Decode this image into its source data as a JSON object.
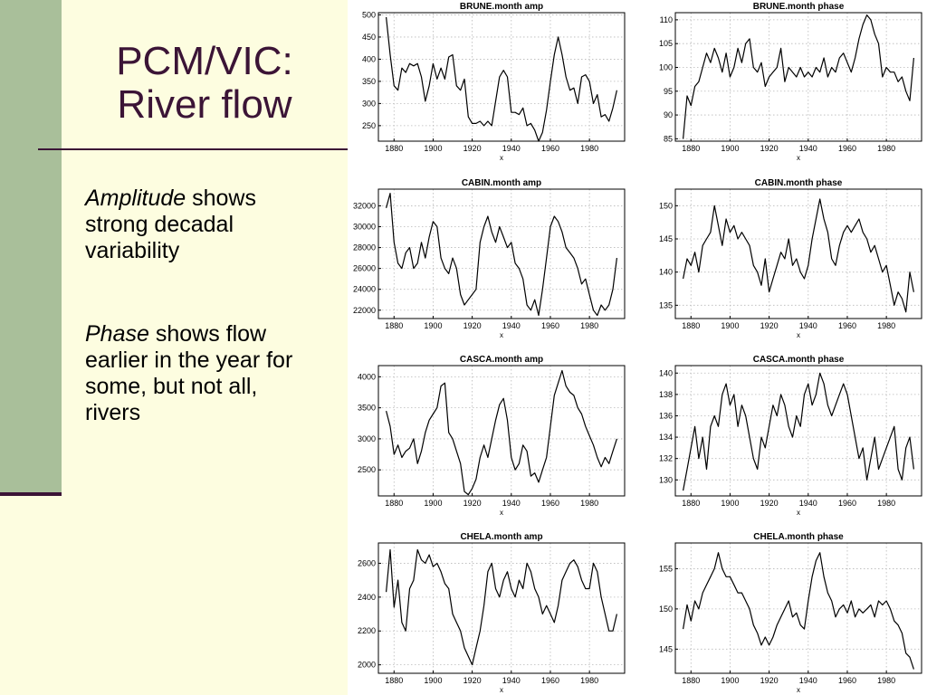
{
  "slide": {
    "title_lines": [
      "PCM/VIC:",
      "River flow"
    ],
    "bullets": [
      {
        "emph": "Amplitude",
        "rest": " shows strong decadal variability"
      },
      {
        "emph": "Phase",
        "rest": " shows flow earlier in the year for some, but not all, rivers"
      }
    ],
    "colors": {
      "background": "#fdfde0",
      "left_strip": "#a9bf9a",
      "accent": "#3b1436"
    }
  },
  "chart_data": [
    {
      "type": "line",
      "title": "BRUNE.month amp",
      "xlabel": "x",
      "xlim": [
        1872,
        1998
      ],
      "ylim": [
        215,
        505
      ],
      "xticks": [
        1880,
        1900,
        1920,
        1940,
        1960,
        1980
      ],
      "yticks": [
        250,
        300,
        350,
        400,
        450,
        500
      ],
      "x": [
        1876,
        1878,
        1880,
        1882,
        1884,
        1886,
        1888,
        1890,
        1892,
        1894,
        1896,
        1898,
        1900,
        1902,
        1904,
        1906,
        1908,
        1910,
        1912,
        1914,
        1916,
        1918,
        1920,
        1922,
        1924,
        1926,
        1928,
        1930,
        1932,
        1934,
        1936,
        1938,
        1940,
        1942,
        1944,
        1946,
        1948,
        1950,
        1952,
        1954,
        1956,
        1958,
        1960,
        1962,
        1964,
        1966,
        1968,
        1970,
        1972,
        1974,
        1976,
        1978,
        1980,
        1982,
        1984,
        1986,
        1988,
        1990,
        1992,
        1994
      ],
      "values": [
        495,
        410,
        340,
        330,
        380,
        370,
        390,
        385,
        390,
        360,
        305,
        340,
        390,
        355,
        380,
        355,
        405,
        410,
        340,
        330,
        355,
        270,
        255,
        255,
        260,
        250,
        260,
        250,
        305,
        360,
        375,
        360,
        280,
        280,
        275,
        290,
        250,
        255,
        240,
        215,
        235,
        285,
        350,
        410,
        450,
        410,
        360,
        330,
        335,
        300,
        360,
        365,
        350,
        300,
        320,
        270,
        275,
        260,
        290,
        330
      ]
    },
    {
      "type": "line",
      "title": "BRUNE.month phase",
      "xlabel": "x",
      "xlim": [
        1872,
        1998
      ],
      "ylim": [
        84.5,
        111.5
      ],
      "xticks": [
        1880,
        1900,
        1920,
        1940,
        1960,
        1980
      ],
      "yticks": [
        85,
        90,
        95,
        100,
        105,
        110
      ],
      "x": [
        1876,
        1878,
        1880,
        1882,
        1884,
        1886,
        1888,
        1890,
        1892,
        1894,
        1896,
        1898,
        1900,
        1902,
        1904,
        1906,
        1908,
        1910,
        1912,
        1914,
        1916,
        1918,
        1920,
        1922,
        1924,
        1926,
        1928,
        1930,
        1932,
        1934,
        1936,
        1938,
        1940,
        1942,
        1944,
        1946,
        1948,
        1950,
        1952,
        1954,
        1956,
        1958,
        1960,
        1962,
        1964,
        1966,
        1968,
        1970,
        1972,
        1974,
        1976,
        1978,
        1980,
        1982,
        1984,
        1986,
        1988,
        1990,
        1992,
        1994
      ],
      "values": [
        85,
        94,
        92,
        96,
        97,
        100,
        103,
        101,
        104,
        102,
        99,
        103,
        98,
        100,
        104,
        101,
        105,
        106,
        100,
        99,
        101,
        96,
        98,
        99,
        100,
        104,
        97,
        100,
        99,
        98,
        100,
        98,
        99,
        98,
        100,
        99,
        102,
        98,
        100,
        99,
        102,
        103,
        101,
        99,
        102,
        106,
        109,
        111,
        110,
        107,
        105,
        98,
        100,
        99,
        99,
        97,
        98,
        95,
        93,
        102
      ]
    },
    {
      "type": "line",
      "title": "CABIN.month amp",
      "xlabel": "x",
      "xlim": [
        1872,
        1998
      ],
      "ylim": [
        21200,
        33600
      ],
      "xticks": [
        1880,
        1900,
        1920,
        1940,
        1960,
        1980
      ],
      "yticks": [
        22000,
        24000,
        26000,
        28000,
        30000,
        32000
      ],
      "x": [
        1876,
        1878,
        1880,
        1882,
        1884,
        1886,
        1888,
        1890,
        1892,
        1894,
        1896,
        1898,
        1900,
        1902,
        1904,
        1906,
        1908,
        1910,
        1912,
        1914,
        1916,
        1918,
        1920,
        1922,
        1924,
        1926,
        1928,
        1930,
        1932,
        1934,
        1936,
        1938,
        1940,
        1942,
        1944,
        1946,
        1948,
        1950,
        1952,
        1954,
        1956,
        1958,
        1960,
        1962,
        1964,
        1966,
        1968,
        1970,
        1972,
        1974,
        1976,
        1978,
        1980,
        1982,
        1984,
        1986,
        1988,
        1990,
        1992,
        1994
      ],
      "values": [
        31800,
        33200,
        28500,
        26500,
        26000,
        27500,
        28000,
        26000,
        26500,
        28500,
        27000,
        29000,
        30500,
        30000,
        27000,
        26000,
        25500,
        27000,
        26000,
        23500,
        22500,
        23000,
        23500,
        24000,
        28500,
        30000,
        31000,
        29500,
        28500,
        30000,
        29000,
        28000,
        28500,
        26500,
        26000,
        25000,
        22500,
        22000,
        23000,
        21500,
        24000,
        27000,
        30000,
        31000,
        30500,
        29500,
        28000,
        27500,
        27000,
        26000,
        24500,
        25000,
        23500,
        22000,
        21500,
        22500,
        22000,
        22500,
        24000,
        27000
      ]
    },
    {
      "type": "line",
      "title": "CABIN.month phase",
      "xlabel": "x",
      "xlim": [
        1872,
        1998
      ],
      "ylim": [
        133,
        152.5
      ],
      "xticks": [
        1880,
        1900,
        1920,
        1940,
        1960,
        1980
      ],
      "yticks": [
        135,
        140,
        145,
        150
      ],
      "x": [
        1876,
        1878,
        1880,
        1882,
        1884,
        1886,
        1888,
        1890,
        1892,
        1894,
        1896,
        1898,
        1900,
        1902,
        1904,
        1906,
        1908,
        1910,
        1912,
        1914,
        1916,
        1918,
        1920,
        1922,
        1924,
        1926,
        1928,
        1930,
        1932,
        1934,
        1936,
        1938,
        1940,
        1942,
        1944,
        1946,
        1948,
        1950,
        1952,
        1954,
        1956,
        1958,
        1960,
        1962,
        1964,
        1966,
        1968,
        1970,
        1972,
        1974,
        1976,
        1978,
        1980,
        1982,
        1984,
        1986,
        1988,
        1990,
        1992,
        1994
      ],
      "values": [
        139,
        142,
        141,
        143,
        140,
        144,
        145,
        146,
        150,
        147,
        144,
        148,
        146,
        147,
        145,
        146,
        145,
        144,
        141,
        140,
        138,
        142,
        137,
        139,
        141,
        143,
        142,
        145,
        141,
        142,
        140,
        139,
        141,
        145,
        148,
        151,
        148,
        146,
        142,
        141,
        144,
        146,
        147,
        146,
        147,
        148,
        146,
        145,
        143,
        144,
        142,
        140,
        141,
        138,
        135,
        137,
        136,
        134,
        140,
        137
      ]
    },
    {
      "type": "line",
      "title": "CASCA.month amp",
      "xlabel": "x",
      "xlim": [
        1872,
        1998
      ],
      "ylim": [
        2080,
        4180
      ],
      "xticks": [
        1880,
        1900,
        1920,
        1940,
        1960,
        1980
      ],
      "yticks": [
        2500,
        3000,
        3500,
        4000
      ],
      "x": [
        1876,
        1878,
        1880,
        1882,
        1884,
        1886,
        1888,
        1890,
        1892,
        1894,
        1896,
        1898,
        1900,
        1902,
        1904,
        1906,
        1908,
        1910,
        1912,
        1914,
        1916,
        1918,
        1920,
        1922,
        1924,
        1926,
        1928,
        1930,
        1932,
        1934,
        1936,
        1938,
        1940,
        1942,
        1944,
        1946,
        1948,
        1950,
        1952,
        1954,
        1956,
        1958,
        1960,
        1962,
        1964,
        1966,
        1968,
        1970,
        1972,
        1974,
        1976,
        1978,
        1980,
        1982,
        1984,
        1986,
        1988,
        1990,
        1992,
        1994
      ],
      "values": [
        3450,
        3200,
        2750,
        2900,
        2700,
        2800,
        2850,
        3000,
        2600,
        2800,
        3100,
        3300,
        3400,
        3500,
        3850,
        3900,
        3100,
        3000,
        2800,
        2600,
        2150,
        2100,
        2200,
        2350,
        2700,
        2900,
        2700,
        3000,
        3300,
        3550,
        3650,
        3300,
        2700,
        2500,
        2600,
        2900,
        2800,
        2400,
        2450,
        2300,
        2500,
        2700,
        3200,
        3700,
        3900,
        4100,
        3850,
        3750,
        3700,
        3500,
        3400,
        3200,
        3050,
        2900,
        2700,
        2550,
        2700,
        2600,
        2800,
        3000
      ]
    },
    {
      "type": "line",
      "title": "CASCA.month phase",
      "xlabel": "x",
      "xlim": [
        1872,
        1998
      ],
      "ylim": [
        128.5,
        140.7
      ],
      "xticks": [
        1880,
        1900,
        1920,
        1940,
        1960,
        1980
      ],
      "yticks": [
        130,
        132,
        134,
        136,
        138,
        140
      ],
      "x": [
        1876,
        1878,
        1880,
        1882,
        1884,
        1886,
        1888,
        1890,
        1892,
        1894,
        1896,
        1898,
        1900,
        1902,
        1904,
        1906,
        1908,
        1910,
        1912,
        1914,
        1916,
        1918,
        1920,
        1922,
        1924,
        1926,
        1928,
        1930,
        1932,
        1934,
        1936,
        1938,
        1940,
        1942,
        1944,
        1946,
        1948,
        1950,
        1952,
        1954,
        1956,
        1958,
        1960,
        1962,
        1964,
        1966,
        1968,
        1970,
        1972,
        1974,
        1976,
        1978,
        1980,
        1982,
        1984,
        1986,
        1988,
        1990,
        1992,
        1994
      ],
      "values": [
        129,
        131,
        133,
        135,
        132,
        134,
        131,
        135,
        136,
        135,
        138,
        139,
        137,
        138,
        135,
        137,
        136,
        134,
        132,
        131,
        134,
        133,
        135,
        137,
        136,
        138,
        137,
        135,
        134,
        136,
        135,
        138,
        139,
        137,
        138,
        140,
        139,
        137,
        136,
        137,
        138,
        139,
        138,
        136,
        134,
        132,
        133,
        130,
        132,
        134,
        131,
        132,
        133,
        134,
        135,
        131,
        130,
        133,
        134,
        131
      ]
    },
    {
      "type": "line",
      "title": "CHELA.month amp",
      "xlabel": "x",
      "xlim": [
        1872,
        1998
      ],
      "ylim": [
        1950,
        2720
      ],
      "xticks": [
        1880,
        1900,
        1920,
        1940,
        1960,
        1980
      ],
      "yticks": [
        2000,
        2200,
        2400,
        2600
      ],
      "x": [
        1876,
        1878,
        1880,
        1882,
        1884,
        1886,
        1888,
        1890,
        1892,
        1894,
        1896,
        1898,
        1900,
        1902,
        1904,
        1906,
        1908,
        1910,
        1912,
        1914,
        1916,
        1918,
        1920,
        1922,
        1924,
        1926,
        1928,
        1930,
        1932,
        1934,
        1936,
        1938,
        1940,
        1942,
        1944,
        1946,
        1948,
        1950,
        1952,
        1954,
        1956,
        1958,
        1960,
        1962,
        1964,
        1966,
        1968,
        1970,
        1972,
        1974,
        1976,
        1978,
        1980,
        1982,
        1984,
        1986,
        1988,
        1990,
        1992,
        1994
      ],
      "values": [
        2430,
        2680,
        2340,
        2500,
        2250,
        2200,
        2450,
        2500,
        2680,
        2620,
        2600,
        2650,
        2580,
        2600,
        2550,
        2480,
        2450,
        2300,
        2250,
        2200,
        2100,
        2050,
        2000,
        2100,
        2200,
        2350,
        2550,
        2600,
        2450,
        2400,
        2500,
        2550,
        2450,
        2400,
        2500,
        2450,
        2600,
        2550,
        2450,
        2400,
        2300,
        2350,
        2300,
        2250,
        2350,
        2500,
        2550,
        2600,
        2620,
        2580,
        2500,
        2450,
        2450,
        2600,
        2550,
        2400,
        2300,
        2200,
        2200,
        2300
      ]
    },
    {
      "type": "line",
      "title": "CHELA.month phase",
      "xlabel": "x",
      "xlim": [
        1872,
        1998
      ],
      "ylim": [
        142,
        158.2
      ],
      "xticks": [
        1880,
        1900,
        1920,
        1940,
        1960,
        1980
      ],
      "yticks": [
        145,
        150,
        155
      ],
      "x": [
        1876,
        1878,
        1880,
        1882,
        1884,
        1886,
        1888,
        1890,
        1892,
        1894,
        1896,
        1898,
        1900,
        1902,
        1904,
        1906,
        1908,
        1910,
        1912,
        1914,
        1916,
        1918,
        1920,
        1922,
        1924,
        1926,
        1928,
        1930,
        1932,
        1934,
        1936,
        1938,
        1940,
        1942,
        1944,
        1946,
        1948,
        1950,
        1952,
        1954,
        1956,
        1958,
        1960,
        1962,
        1964,
        1966,
        1968,
        1970,
        1972,
        1974,
        1976,
        1978,
        1980,
        1982,
        1984,
        1986,
        1988,
        1990,
        1992,
        1994
      ],
      "values": [
        147.5,
        150.5,
        148.5,
        151,
        150,
        152,
        153,
        154,
        155,
        157,
        155,
        154,
        154,
        153,
        152,
        152,
        151,
        150,
        148,
        147,
        145.5,
        146.5,
        145.5,
        146.5,
        148,
        149,
        150,
        151,
        149,
        149.5,
        148,
        147.5,
        151,
        154,
        156,
        157,
        154,
        152,
        151,
        149,
        150,
        150.5,
        149.5,
        151,
        149,
        150,
        149.5,
        150,
        150.5,
        149,
        151,
        150.5,
        151,
        150,
        148.5,
        148,
        147,
        144.5,
        144,
        142.5
      ]
    }
  ]
}
